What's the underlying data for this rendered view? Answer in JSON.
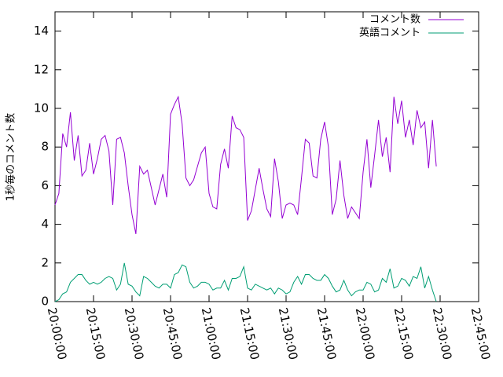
{
  "chart_data": {
    "type": "line",
    "ylabel": "1秒毎のコメント数",
    "xlim": [
      "20:00:00",
      "22:45:00"
    ],
    "xticks": [
      "20:00:00",
      "20:15:00",
      "20:30:00",
      "20:45:00",
      "21:00:00",
      "21:15:00",
      "21:30:00",
      "21:45:00",
      "22:00:00",
      "22:15:00",
      "22:30:00",
      "22:45:00"
    ],
    "ylim": [
      0,
      15
    ],
    "yticks": [
      0,
      2,
      4,
      6,
      8,
      10,
      12,
      14
    ],
    "legend": "top-right",
    "x": [
      "20:00:00",
      "20:01:30",
      "20:03:00",
      "20:04:30",
      "20:06:00",
      "20:07:30",
      "20:09:00",
      "20:10:30",
      "20:12:00",
      "20:13:30",
      "20:15:00",
      "20:16:30",
      "20:18:00",
      "20:19:30",
      "20:21:00",
      "20:22:30",
      "20:24:00",
      "20:25:30",
      "20:27:00",
      "20:28:30",
      "20:30:00",
      "20:31:30",
      "20:33:00",
      "20:34:30",
      "20:36:00",
      "20:37:30",
      "20:39:00",
      "20:40:30",
      "20:42:00",
      "20:43:30",
      "20:45:00",
      "20:46:30",
      "20:48:00",
      "20:49:30",
      "20:51:00",
      "20:52:30",
      "20:54:00",
      "20:55:30",
      "20:57:00",
      "20:58:30",
      "21:00:00",
      "21:01:30",
      "21:03:00",
      "21:04:30",
      "21:06:00",
      "21:07:30",
      "21:09:00",
      "21:10:30",
      "21:12:00",
      "21:13:30",
      "21:15:00",
      "21:16:30",
      "21:18:00",
      "21:19:30",
      "21:21:00",
      "21:22:30",
      "21:24:00",
      "21:25:30",
      "21:27:00",
      "21:28:30",
      "21:30:00",
      "21:31:30",
      "21:33:00",
      "21:34:30",
      "21:36:00",
      "21:37:30",
      "21:39:00",
      "21:40:30",
      "21:42:00",
      "21:43:30",
      "21:45:00",
      "21:46:30",
      "21:48:00",
      "21:49:30",
      "21:51:00",
      "21:52:30",
      "21:54:00",
      "21:55:30",
      "21:57:00",
      "21:58:30",
      "22:00:00",
      "22:01:30",
      "22:03:00",
      "22:04:30",
      "22:06:00",
      "22:07:30",
      "22:09:00",
      "22:10:30",
      "22:12:00",
      "22:13:30",
      "22:15:00",
      "22:16:30",
      "22:18:00",
      "22:19:30",
      "22:21:00",
      "22:22:30",
      "22:24:00",
      "22:25:30",
      "22:27:00",
      "22:28:30"
    ],
    "series": [
      {
        "name": "コメント数",
        "color": "#9400d3",
        "values": [
          5.0,
          5.6,
          8.7,
          8.0,
          9.8,
          7.3,
          8.6,
          6.5,
          6.8,
          8.2,
          6.6,
          7.4,
          8.4,
          8.6,
          7.8,
          5.0,
          8.4,
          8.5,
          7.7,
          6.0,
          4.5,
          3.5,
          7.0,
          6.6,
          6.8,
          5.9,
          5.0,
          5.8,
          6.6,
          5.4,
          9.7,
          10.2,
          10.6,
          9.2,
          6.4,
          6.0,
          6.3,
          7.0,
          7.7,
          8.0,
          5.6,
          4.9,
          4.8,
          7.1,
          7.9,
          6.9,
          9.6,
          9.0,
          8.9,
          8.5,
          4.2,
          4.7,
          5.8,
          6.9,
          5.8,
          4.8,
          4.4,
          7.4,
          6.2,
          4.3,
          5.0,
          5.1,
          5.0,
          4.5,
          6.4,
          8.4,
          8.2,
          6.5,
          6.4,
          8.4,
          9.3,
          8.0,
          4.5,
          5.3,
          7.3,
          5.5,
          4.3,
          4.9,
          4.6,
          4.3,
          6.7,
          8.4,
          5.9,
          7.6,
          9.4,
          7.5,
          8.5,
          6.7,
          10.6,
          9.2,
          10.4,
          8.5,
          9.4,
          8.1,
          9.9,
          9.0,
          9.3,
          6.9,
          9.4,
          7.0
        ]
      },
      {
        "name": "英語コメント",
        "color": "#009e73",
        "values": [
          0,
          0.1,
          0.4,
          0.5,
          1.0,
          1.2,
          1.4,
          1.4,
          1.1,
          0.9,
          1.0,
          0.9,
          1.0,
          1.2,
          1.3,
          1.2,
          0.6,
          0.9,
          2.0,
          0.9,
          0.8,
          0.5,
          0.3,
          1.3,
          1.2,
          1.0,
          0.8,
          0.7,
          0.9,
          0.9,
          0.7,
          1.4,
          1.5,
          1.9,
          1.8,
          1.0,
          0.7,
          0.8,
          1.0,
          1.0,
          0.9,
          0.6,
          0.7,
          0.7,
          1.1,
          0.6,
          1.2,
          1.2,
          1.3,
          1.8,
          0.7,
          0.6,
          0.9,
          0.8,
          0.7,
          0.6,
          0.7,
          0.4,
          0.7,
          0.6,
          0.4,
          0.5,
          1.0,
          1.3,
          0.9,
          1.4,
          1.4,
          1.2,
          1.1,
          1.1,
          1.4,
          1.2,
          0.8,
          0.5,
          0.6,
          1.1,
          0.6,
          0.3,
          0.5,
          0.6,
          0.6,
          1.0,
          0.9,
          0.5,
          0.6,
          1.2,
          1.0,
          1.7,
          0.7,
          0.8,
          1.2,
          1.1,
          0.8,
          1.3,
          1.2,
          1.8,
          0.7,
          1.3,
          0.6,
          0
        ]
      }
    ]
  }
}
